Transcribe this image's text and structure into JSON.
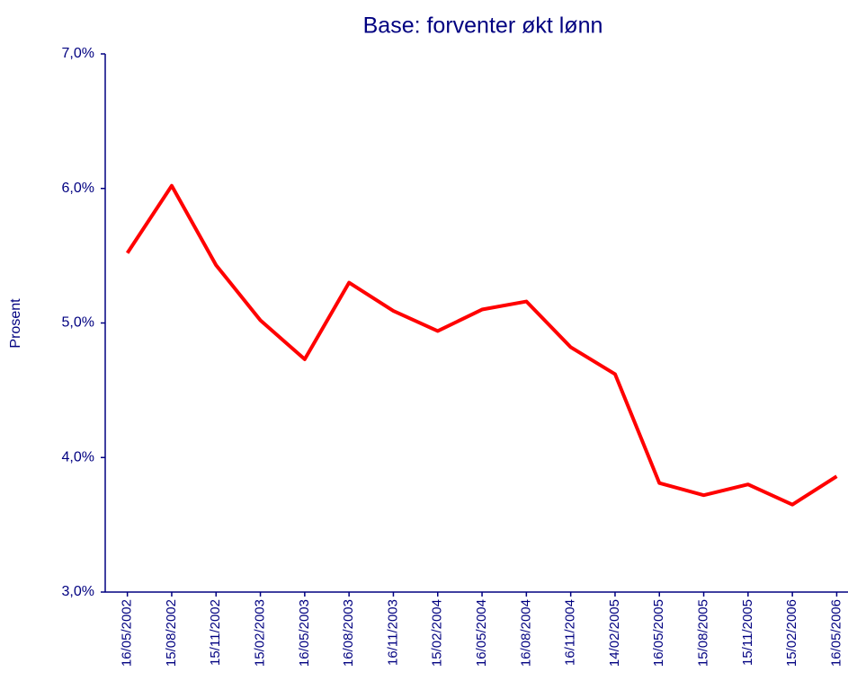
{
  "chart_data": {
    "type": "line",
    "title": "Base: forventer økt lønn",
    "y_label": "Prosent",
    "categories": [
      "16/05/2002",
      "15/08/2002",
      "15/11/2002",
      "15/02/2003",
      "16/05/2003",
      "16/08/2003",
      "16/11/2003",
      "15/02/2004",
      "16/05/2004",
      "16/08/2004",
      "16/11/2004",
      "14/02/2005",
      "16/05/2005",
      "15/08/2005",
      "15/11/2005",
      "15/02/2006",
      "16/05/2006"
    ],
    "series": [
      {
        "name": "Base: forventer økt lønn",
        "color": "#ff0000",
        "values": [
          5.52,
          6.02,
          5.43,
          5.02,
          4.73,
          5.3,
          5.09,
          4.94,
          5.1,
          5.16,
          4.82,
          4.62,
          3.81,
          3.72,
          3.8,
          3.65,
          3.86
        ]
      }
    ],
    "ylim": [
      3,
      7
    ],
    "yticks": [
      {
        "value": 3,
        "label": "3,0%"
      },
      {
        "value": 4,
        "label": "4,0%"
      },
      {
        "value": 5,
        "label": "5,0%"
      },
      {
        "value": 6,
        "label": "6,0%"
      },
      {
        "value": 7,
        "label": "7,0%"
      }
    ],
    "grid": false
  }
}
